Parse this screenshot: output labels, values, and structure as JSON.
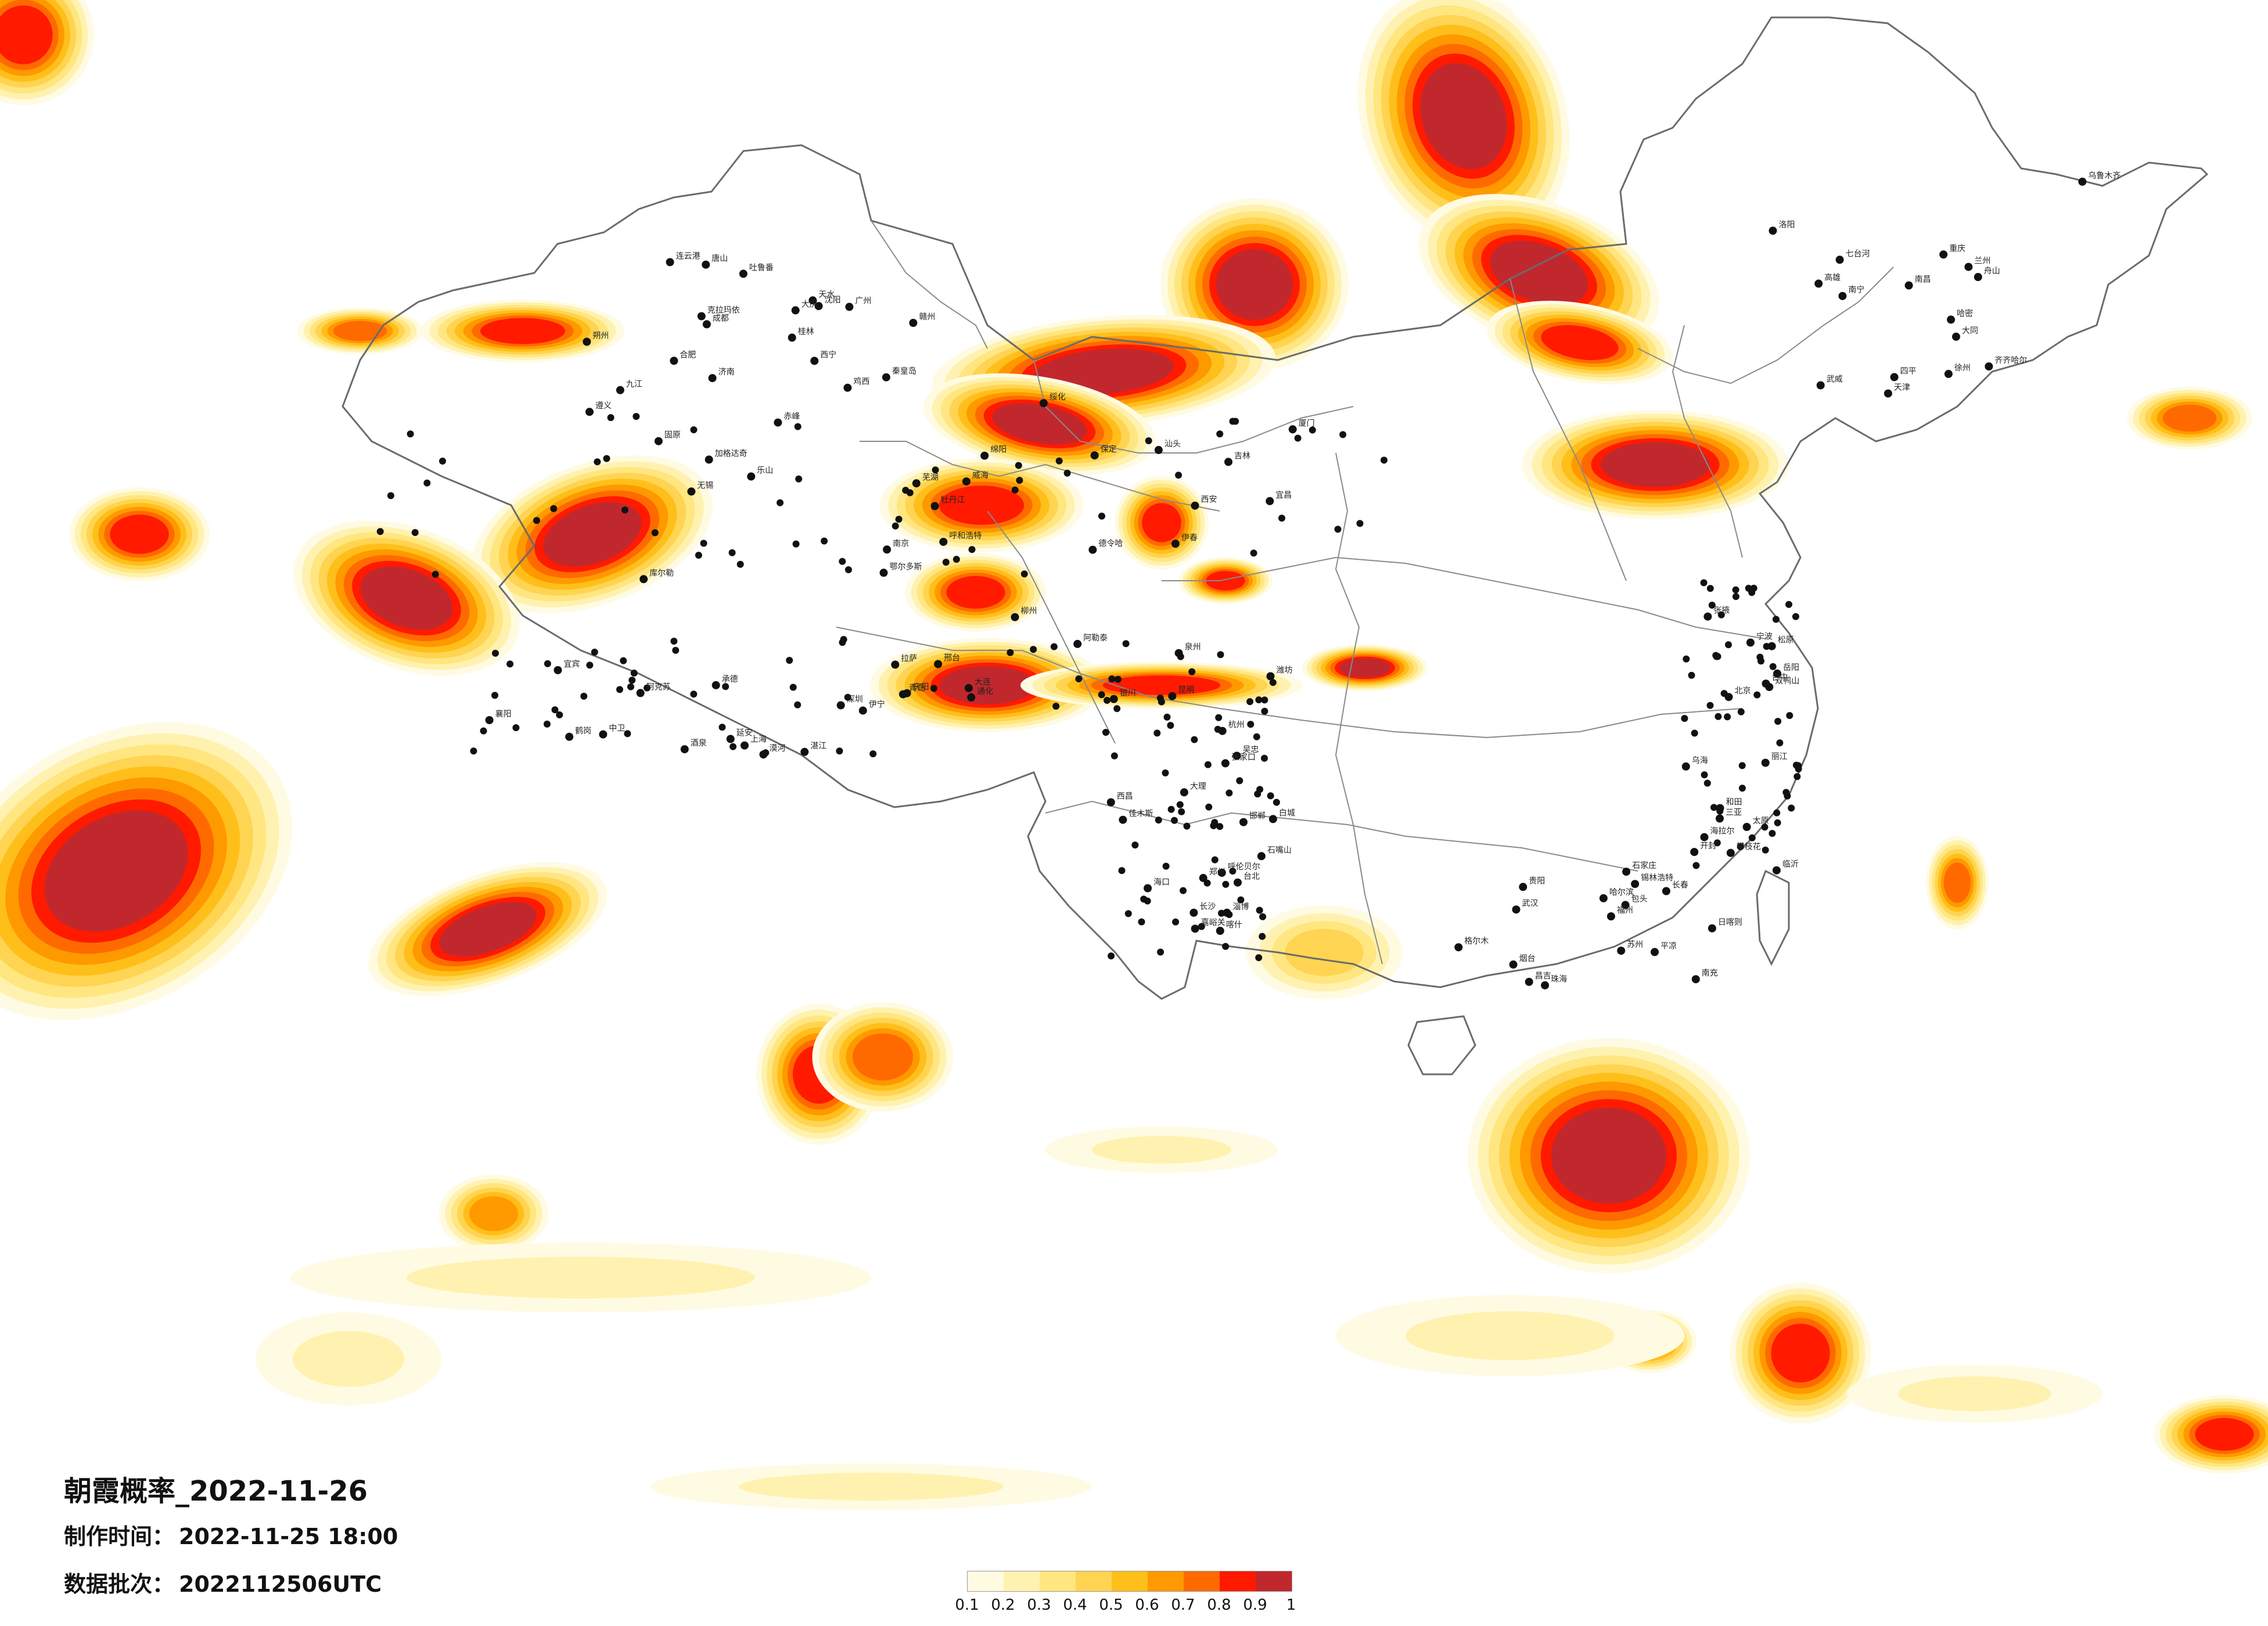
{
  "title": "朝霞概率_2022-11-26",
  "production_time_label": "制作时间：",
  "production_time": "2022-11-25 18:00",
  "data_batch_label": "数据批次：",
  "data_batch": "2022112506UTC",
  "legend": {
    "ticks": [
      "0.1",
      "0.2",
      "0.3",
      "0.4",
      "0.5",
      "0.6",
      "0.7",
      "0.8",
      "0.9",
      "1"
    ],
    "colors": [
      "#fffbe3",
      "#fff2b0",
      "#ffe680",
      "#ffd452",
      "#ffbf1a",
      "#ff9900",
      "#ff6a00",
      "#ff1a00",
      "#c0282e"
    ]
  },
  "map_labels": [
    "加格达奇",
    "漠河",
    "呼伦贝尔",
    "海拉尔",
    "齐齐哈尔",
    "大庆",
    "绥化",
    "哈尔滨",
    "伊春",
    "鹤岗",
    "佳木斯",
    "双鸭山",
    "七台河",
    "鸡西",
    "牡丹江",
    "长春",
    "吉林",
    "通化",
    "白城",
    "松原",
    "四平",
    "沈阳",
    "大连",
    "锡林浩特",
    "赤峰",
    "承德",
    "张家口",
    "北京",
    "天津",
    "唐山",
    "秦皇岛",
    "石家庄",
    "保定",
    "邢台",
    "邯郸",
    "太原",
    "大同",
    "朔州",
    "呼和浩特",
    "包头",
    "鄂尔多斯",
    "银川",
    "石嘴山",
    "乌海",
    "兰州",
    "西宁",
    "拉萨",
    "日喀则",
    "西安",
    "延安",
    "郑州",
    "开封",
    "洛阳",
    "济南",
    "青岛",
    "烟台",
    "威海",
    "潍坊",
    "淄博",
    "临沂",
    "徐州",
    "连云港",
    "南京",
    "苏州",
    "无锡",
    "上海",
    "杭州",
    "宁波",
    "舟山",
    "合肥",
    "芜湖",
    "武汉",
    "宜昌",
    "襄阳",
    "长沙",
    "岳阳",
    "南昌",
    "九江",
    "赣州",
    "福州",
    "厦门",
    "泉州",
    "台北",
    "台中",
    "高雄",
    "广州",
    "深圳",
    "珠海",
    "汕头",
    "湛江",
    "海口",
    "三亚",
    "南宁",
    "桂林",
    "柳州",
    "贵阳",
    "遵义",
    "昆明",
    "大理",
    "丽江",
    "重庆",
    "成都",
    "绵阳",
    "南充",
    "乐山",
    "宜宾",
    "西昌",
    "攀枝花",
    "乌鲁木齐",
    "克拉玛依",
    "伊宁",
    "昌吉",
    "库尔勒",
    "阿克苏",
    "喀什",
    "和田",
    "哈密",
    "吐鲁番",
    "阿勒泰",
    "格尔木",
    "德令哈",
    "酒泉",
    "嘉峪关",
    "张掖",
    "武威",
    "天水",
    "庆阳",
    "平凉",
    "固原",
    "中卫",
    "吴忠"
  ]
}
